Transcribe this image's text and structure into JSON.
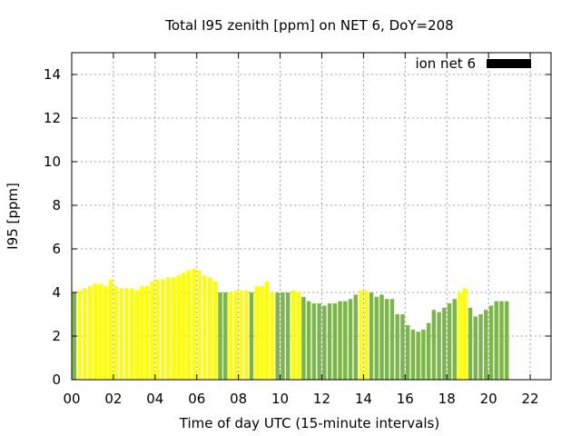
{
  "chart_data": {
    "type": "bar",
    "title": "Total I95 zenith [ppm] on NET 6, DoY=208",
    "xlabel": "Time of day UTC (15-minute intervals)",
    "ylabel": "I95 [ppm]",
    "xlim": [
      0,
      23
    ],
    "ylim": [
      0,
      15
    ],
    "x_ticks": [
      "00",
      "02",
      "04",
      "06",
      "08",
      "10",
      "12",
      "14",
      "16",
      "18",
      "20",
      "22"
    ],
    "y_ticks": [
      "0",
      "2",
      "4",
      "6",
      "8",
      "10",
      "12",
      "14"
    ],
    "grid": true,
    "legend": {
      "label": "ion net 6",
      "color": "#000000",
      "position": "top-right"
    },
    "colors": {
      "green": "#7ab648",
      "yellow": "#ffff00"
    },
    "interval_hours": 0.25,
    "series": [
      {
        "values": [
          4.0,
          4.1,
          4.2,
          4.3,
          4.4,
          4.4,
          4.3,
          4.6,
          4.3,
          4.2,
          4.2,
          4.2,
          4.1,
          4.3,
          4.3,
          4.5,
          4.6,
          4.6,
          4.7,
          4.7,
          4.8,
          4.9,
          5.0,
          5.1,
          5.0,
          4.8,
          4.7,
          4.5,
          4.0,
          4.0,
          4.0,
          4.1,
          4.1,
          4.1,
          4.0,
          4.3,
          4.3,
          4.5,
          4.0,
          4.0,
          4.0,
          4.0,
          4.1,
          4.0,
          3.8,
          3.6,
          3.5,
          3.5,
          3.4,
          3.5,
          3.5,
          3.6,
          3.6,
          3.7,
          3.9,
          4.1,
          4.1,
          4.0,
          3.8,
          3.9,
          3.7,
          3.7,
          3.0,
          3.0,
          2.5,
          2.3,
          2.2,
          2.3,
          2.6,
          3.2,
          3.1,
          3.3,
          3.5,
          3.7,
          4.0,
          4.2,
          3.3,
          2.9,
          3.0,
          3.2,
          3.4,
          3.6,
          3.6,
          3.6
        ],
        "colors": [
          "green",
          "yellow",
          "yellow",
          "yellow",
          "yellow",
          "yellow",
          "yellow",
          "yellow",
          "yellow",
          "yellow",
          "yellow",
          "yellow",
          "yellow",
          "yellow",
          "yellow",
          "yellow",
          "yellow",
          "yellow",
          "yellow",
          "yellow",
          "yellow",
          "yellow",
          "yellow",
          "yellow",
          "yellow",
          "yellow",
          "yellow",
          "yellow",
          "green",
          "green",
          "yellow",
          "yellow",
          "yellow",
          "yellow",
          "green",
          "yellow",
          "yellow",
          "yellow",
          "yellow",
          "green",
          "green",
          "green",
          "yellow",
          "yellow",
          "green",
          "green",
          "green",
          "green",
          "green",
          "green",
          "green",
          "green",
          "green",
          "green",
          "green",
          "yellow",
          "yellow",
          "green",
          "green",
          "green",
          "green",
          "green",
          "green",
          "green",
          "green",
          "green",
          "green",
          "green",
          "green",
          "green",
          "green",
          "green",
          "green",
          "green",
          "yellow",
          "yellow",
          "green",
          "green",
          "green",
          "green",
          "green",
          "green",
          "green",
          "green"
        ]
      }
    ]
  }
}
